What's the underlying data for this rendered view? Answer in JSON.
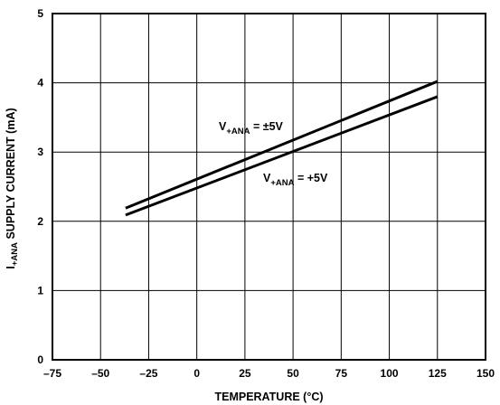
{
  "chart_data": {
    "type": "line",
    "title": "",
    "xlabel": "TEMPERATURE (°C)",
    "ylabel": {
      "main": "I",
      "sub": "+ANA",
      "rest": " SUPPLY CURRENT (mA)"
    },
    "xlim": [
      -75,
      150
    ],
    "ylim": [
      0,
      5
    ],
    "xticks": [
      "–75",
      "–50",
      "–25",
      "0",
      "25",
      "50",
      "75",
      "100",
      "125",
      "150"
    ],
    "yticks": [
      "0",
      "1",
      "2",
      "3",
      "4",
      "5"
    ],
    "grid": true,
    "series": [
      {
        "x": [
          -37,
          125
        ],
        "y": [
          2.19,
          4.02
        ]
      },
      {
        "x": [
          -37,
          125
        ],
        "y": [
          2.09,
          3.8
        ]
      }
    ],
    "annotations": [
      {
        "main": "V",
        "sub": "+ANA",
        "rest": " = ±5V"
      },
      {
        "main": "V",
        "sub": "+ANA",
        "rest": " = +5V"
      }
    ]
  }
}
